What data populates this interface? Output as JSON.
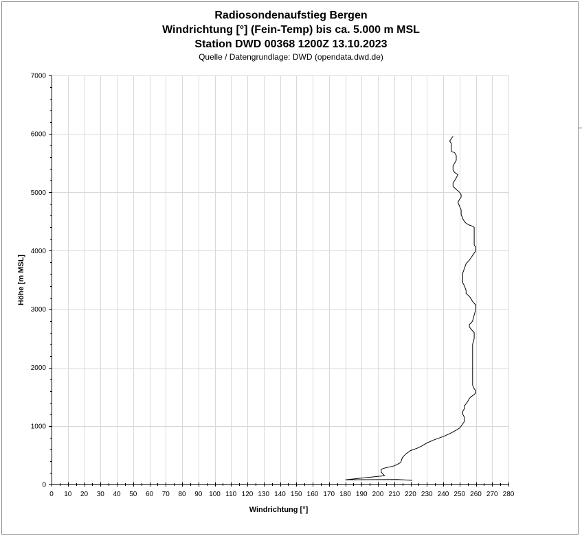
{
  "chart_data": {
    "type": "line",
    "title": "Radiosondenaufstieg Bergen",
    "subtitle_lines": [
      "Windrichtung [°] (Fein-Temp) bis ca. 5.000 m MSL",
      "Station DWD 00368 1200Z 13.10.2023"
    ],
    "source": "Quelle / Datengrundlage: DWD (opendata.dwd.de)",
    "xlabel": "Windrichtung [°]",
    "ylabel": "Höhe [m MSL]",
    "xlim": [
      0,
      280
    ],
    "ylim": [
      0,
      7000
    ],
    "x_ticks": [
      0,
      10,
      20,
      30,
      40,
      50,
      60,
      70,
      80,
      90,
      100,
      110,
      120,
      130,
      140,
      150,
      160,
      170,
      180,
      190,
      200,
      210,
      220,
      230,
      240,
      250,
      260,
      270,
      280
    ],
    "y_ticks": [
      0,
      1000,
      2000,
      3000,
      4000,
      5000,
      6000,
      7000
    ],
    "grid": true,
    "legend": "none",
    "line_color": "#000000",
    "series": [
      {
        "points": [
          [
            221,
            70
          ],
          [
            212,
            85
          ],
          [
            180,
            80
          ],
          [
            204,
            150
          ],
          [
            202,
            210
          ],
          [
            202,
            260
          ],
          [
            204,
            280
          ],
          [
            210,
            320
          ],
          [
            213,
            360
          ],
          [
            214,
            380
          ],
          [
            215,
            460
          ],
          [
            217,
            520
          ],
          [
            220,
            580
          ],
          [
            224,
            620
          ],
          [
            227,
            660
          ],
          [
            230,
            710
          ],
          [
            234,
            760
          ],
          [
            237,
            790
          ],
          [
            240,
            820
          ],
          [
            242,
            845
          ],
          [
            244,
            870
          ],
          [
            246,
            900
          ],
          [
            248,
            930
          ],
          [
            250,
            965
          ],
          [
            251,
            1000
          ],
          [
            252,
            1040
          ],
          [
            253,
            1080
          ],
          [
            253,
            1150
          ],
          [
            252,
            1200
          ],
          [
            252,
            1250
          ],
          [
            253,
            1300
          ],
          [
            253,
            1350
          ],
          [
            254,
            1380
          ],
          [
            255,
            1420
          ],
          [
            256,
            1470
          ],
          [
            257,
            1500
          ],
          [
            259,
            1540
          ],
          [
            260,
            1570
          ],
          [
            260,
            1600
          ],
          [
            259,
            1640
          ],
          [
            258,
            1700
          ],
          [
            258,
            1900
          ],
          [
            258,
            2100
          ],
          [
            258,
            2200
          ],
          [
            258,
            2400
          ],
          [
            259,
            2500
          ],
          [
            259,
            2600
          ],
          [
            258,
            2630
          ],
          [
            257,
            2660
          ],
          [
            256,
            2700
          ],
          [
            256,
            2740
          ],
          [
            257,
            2760
          ],
          [
            258,
            2800
          ],
          [
            259,
            2900
          ],
          [
            260,
            3000
          ],
          [
            260,
            3070
          ],
          [
            258,
            3130
          ],
          [
            257,
            3180
          ],
          [
            256,
            3220
          ],
          [
            254,
            3270
          ],
          [
            254,
            3320
          ],
          [
            253,
            3400
          ],
          [
            252,
            3450
          ],
          [
            252,
            3550
          ],
          [
            252,
            3620
          ],
          [
            253,
            3700
          ],
          [
            254,
            3780
          ],
          [
            256,
            3840
          ],
          [
            257,
            3880
          ],
          [
            258,
            3920
          ],
          [
            259,
            3960
          ],
          [
            260,
            4000
          ],
          [
            260,
            4060
          ],
          [
            259,
            4100
          ],
          [
            259,
            4200
          ],
          [
            259,
            4300
          ],
          [
            259,
            4400
          ],
          [
            258,
            4420
          ],
          [
            256,
            4440
          ],
          [
            254,
            4470
          ],
          [
            253,
            4500
          ],
          [
            252,
            4550
          ],
          [
            251,
            4620
          ],
          [
            251,
            4700
          ],
          [
            250,
            4760
          ],
          [
            249,
            4830
          ],
          [
            250,
            4880
          ],
          [
            251,
            4920
          ],
          [
            251,
            4960
          ],
          [
            250,
            5000
          ],
          [
            248,
            5050
          ],
          [
            246,
            5100
          ],
          [
            246,
            5160
          ],
          [
            247,
            5200
          ],
          [
            248,
            5250
          ],
          [
            249,
            5300
          ],
          [
            247,
            5340
          ],
          [
            246,
            5380
          ],
          [
            246,
            5450
          ],
          [
            247,
            5500
          ],
          [
            248,
            5550
          ],
          [
            248,
            5630
          ],
          [
            247,
            5680
          ],
          [
            245,
            5700
          ],
          [
            245,
            5780
          ],
          [
            245,
            5830
          ],
          [
            244,
            5880
          ],
          [
            245,
            5920
          ],
          [
            246,
            5960
          ]
        ]
      }
    ]
  }
}
